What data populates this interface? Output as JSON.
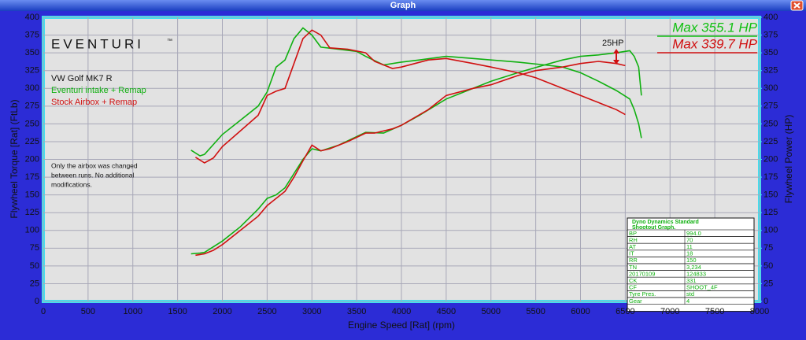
{
  "chart_data": {
    "type": "line",
    "window_title": "Graph",
    "logo": "EVENTURI",
    "logo_mark": "™",
    "legend_title": "VW Golf MK7 R",
    "note": [
      "Only the airbox was changed",
      "between runs. No additional",
      "modifications."
    ],
    "annotations": {
      "gain": "25HP",
      "max_1": "Max 355.1 HP",
      "max_2": "Max 339.7 HP"
    },
    "xlabel": "Engine Speed [Rat] (rpm)",
    "ylabel": "Flywheel Torque [Rat] (FtLb)",
    "y2label": "Flywheel Power (HP)",
    "xlim": [
      0,
      8000
    ],
    "xticks": [
      0,
      500,
      1000,
      1500,
      2000,
      2500,
      3000,
      3500,
      4000,
      4500,
      5000,
      5500,
      6000,
      6500,
      7000,
      7500,
      8000
    ],
    "ylim": [
      0,
      400
    ],
    "yticks": [
      0,
      25,
      50,
      75,
      100,
      125,
      150,
      175,
      200,
      225,
      250,
      275,
      300,
      325,
      350,
      375,
      400
    ],
    "y2lim": [
      0,
      400
    ],
    "y2ticks": [
      0,
      25,
      50,
      75,
      100,
      125,
      150,
      175,
      200,
      225,
      250,
      275,
      300,
      325,
      350,
      375,
      400
    ],
    "grid": true,
    "series": [
      {
        "name": "Eventuri intake + Remap",
        "color": "#10b010",
        "x": [
          1650,
          1750,
          1800,
          2000,
          2200,
          2400,
          2500,
          2600,
          2700,
          2800,
          2900,
          3000,
          3100,
          3300,
          3500,
          3600,
          3800,
          4000,
          4200,
          4500,
          4800,
          5000,
          5300,
          5600,
          5800,
          6000,
          6200,
          6400,
          6550,
          6600,
          6650,
          6680
        ],
        "torque": [
          213,
          205,
          207,
          235,
          255,
          275,
          295,
          330,
          340,
          370,
          385,
          375,
          358,
          355,
          352,
          345,
          333,
          337,
          340,
          345,
          342,
          340,
          337,
          333,
          330,
          322,
          310,
          297,
          285,
          270,
          250,
          230
        ],
        "power": [
          67,
          68,
          69,
          85,
          105,
          130,
          145,
          150,
          160,
          180,
          200,
          215,
          212,
          220,
          232,
          238,
          237,
          248,
          262,
          285,
          300,
          310,
          322,
          333,
          340,
          345,
          347,
          350,
          353,
          345,
          330,
          290
        ]
      },
      {
        "name": "Stock Airbox + Remap",
        "color": "#d01010",
        "x": [
          1700,
          1800,
          1900,
          2000,
          2200,
          2400,
          2500,
          2600,
          2700,
          2800,
          2900,
          3000,
          3100,
          3200,
          3400,
          3600,
          3700,
          3900,
          4000,
          4300,
          4500,
          4800,
          5000,
          5300,
          5500,
          5800,
          6000,
          6200,
          6400,
          6500
        ],
        "torque": [
          203,
          195,
          202,
          218,
          240,
          262,
          290,
          296,
          300,
          335,
          370,
          382,
          375,
          357,
          355,
          350,
          338,
          328,
          330,
          340,
          342,
          335,
          330,
          322,
          315,
          300,
          290,
          280,
          270,
          263
        ],
        "power": [
          65,
          67,
          72,
          80,
          100,
          120,
          135,
          145,
          155,
          175,
          198,
          220,
          212,
          215,
          225,
          237,
          237,
          243,
          248,
          270,
          290,
          300,
          305,
          318,
          325,
          330,
          335,
          338,
          335,
          332
        ]
      }
    ],
    "info_table": {
      "header": [
        "Dyno Dynamics Standard",
        "Shootout Graph."
      ],
      "rows": [
        [
          "BP",
          "994.0"
        ],
        [
          "RH",
          "70"
        ],
        [
          "AT",
          "11"
        ],
        [
          "IT",
          "18"
        ],
        [
          "RR",
          "150"
        ],
        [
          "TN",
          "3,234"
        ],
        [
          "20170109",
          "124833"
        ],
        [
          "CK",
          "331"
        ],
        [
          "CF",
          "SHOOT_4F"
        ],
        [
          "Tyre Pres.",
          "std"
        ],
        [
          "Gear",
          "4"
        ]
      ]
    }
  }
}
